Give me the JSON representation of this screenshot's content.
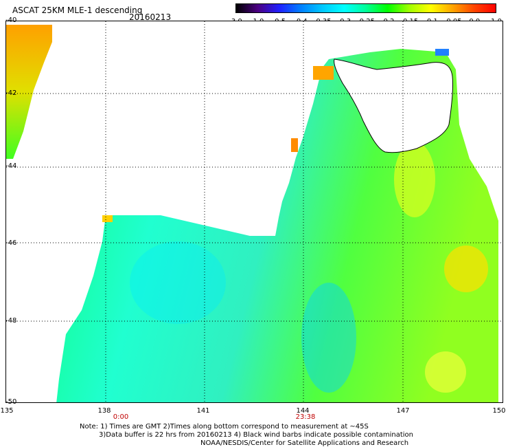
{
  "header": {
    "title": "ASCAT 25KM MLE-1 descending",
    "date": "20160213"
  },
  "colorbar": {
    "labels": [
      "-3.0",
      "-1.0",
      "-0.5",
      "-0.4",
      "-0.35",
      "-0.3",
      "-0.25",
      "-0.2",
      "-0.15",
      "-0.1",
      "-0.05",
      "0.0",
      "1.0"
    ],
    "colors": [
      "#000000",
      "#4b0082",
      "#2020ff",
      "#0080ff",
      "#00c8ff",
      "#00ffff",
      "#00ff99",
      "#00ff00",
      "#a0ff00",
      "#ffff00",
      "#ffa500",
      "#ff4500",
      "#ff0000"
    ]
  },
  "axes": {
    "lat_labels": [
      "-40",
      "-42",
      "-44",
      "-46",
      "-48",
      "-50"
    ],
    "lon_labels": [
      "135",
      "138",
      "141",
      "144",
      "147",
      "150"
    ]
  },
  "times": [
    {
      "label": "0:00"
    },
    {
      "label": "23:38"
    }
  ],
  "notes": {
    "line1": "Note: 1) Times are GMT 2)Times along bottom correspond to measurement at ~45S",
    "line2": "3)Data buffer is 22 hrs from 20160213 4) Black wind barbs indicate possible contamination",
    "line3": "NOAA/NESDIS/Center for Satellite Applications and Research"
  }
}
